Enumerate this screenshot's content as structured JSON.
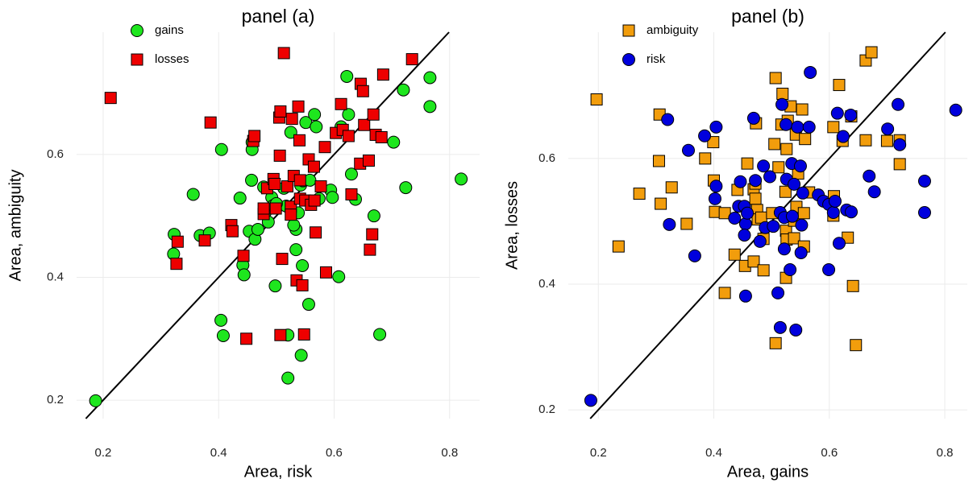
{
  "chart_data": [
    {
      "type": "scatter",
      "title": "panel (a)",
      "x_label": "Area, risk",
      "y_label": "Area, ambiguity",
      "xlim": [
        0.154,
        0.852
      ],
      "ylim": [
        0.17,
        0.799
      ],
      "xticks": [
        0.2,
        0.4,
        0.6,
        0.8
      ],
      "yticks": [
        0.2,
        0.4,
        0.6
      ],
      "grid": true,
      "identity_line": true,
      "legend": "upper left",
      "series": [
        {
          "name": "gains",
          "color": "#1ee61e",
          "marker": "circle",
          "points": [
            [
              0.187,
              0.199
            ],
            [
              0.323,
              0.47
            ],
            [
              0.322,
              0.438
            ],
            [
              0.356,
              0.535
            ],
            [
              0.368,
              0.468
            ],
            [
              0.384,
              0.472
            ],
            [
              0.405,
              0.608
            ],
            [
              0.404,
              0.33
            ],
            [
              0.408,
              0.305
            ],
            [
              0.437,
              0.529
            ],
            [
              0.442,
              0.42
            ],
            [
              0.444,
              0.404
            ],
            [
              0.453,
              0.475
            ],
            [
              0.457,
              0.558
            ],
            [
              0.458,
              0.62
            ],
            [
              0.458,
              0.608
            ],
            [
              0.463,
              0.462
            ],
            [
              0.468,
              0.478
            ],
            [
              0.478,
              0.547
            ],
            [
              0.481,
              0.506
            ],
            [
              0.486,
              0.49
            ],
            [
              0.492,
              0.53
            ],
            [
              0.495,
              0.517
            ],
            [
              0.498,
              0.386
            ],
            [
              0.513,
              0.545
            ],
            [
              0.517,
              0.516
            ],
            [
              0.52,
              0.306
            ],
            [
              0.52,
              0.236
            ],
            [
              0.525,
              0.636
            ],
            [
              0.534,
              0.445
            ],
            [
              0.534,
              0.478
            ],
            [
              0.538,
              0.505
            ],
            [
              0.542,
              0.55
            ],
            [
              0.545,
              0.419
            ],
            [
              0.543,
              0.273
            ],
            [
              0.546,
              0.557
            ],
            [
              0.551,
              0.652
            ],
            [
              0.556,
              0.356
            ],
            [
              0.558,
              0.558
            ],
            [
              0.566,
              0.665
            ],
            [
              0.569,
              0.645
            ],
            [
              0.574,
              0.528
            ],
            [
              0.594,
              0.542
            ],
            [
              0.597,
              0.53
            ],
            [
              0.608,
              0.401
            ],
            [
              0.612,
              0.645
            ],
            [
              0.622,
              0.727
            ],
            [
              0.625,
              0.665
            ],
            [
              0.63,
              0.568
            ],
            [
              0.637,
              0.527
            ],
            [
              0.669,
              0.5
            ],
            [
              0.679,
              0.307
            ],
            [
              0.703,
              0.62
            ],
            [
              0.724,
              0.546
            ],
            [
              0.72,
              0.705
            ],
            [
              0.766,
              0.725
            ],
            [
              0.766,
              0.678
            ],
            [
              0.82,
              0.56
            ],
            [
              0.53,
              0.485
            ],
            [
              0.5,
              0.52
            ]
          ]
        },
        {
          "name": "losses",
          "color": "#ee0000",
          "marker": "square",
          "points": [
            [
              0.213,
              0.692
            ],
            [
              0.327,
              0.422
            ],
            [
              0.329,
              0.458
            ],
            [
              0.376,
              0.46
            ],
            [
              0.386,
              0.652
            ],
            [
              0.422,
              0.485
            ],
            [
              0.424,
              0.475
            ],
            [
              0.443,
              0.435
            ],
            [
              0.448,
              0.3
            ],
            [
              0.46,
              0.622
            ],
            [
              0.462,
              0.63
            ],
            [
              0.478,
              0.503
            ],
            [
              0.478,
              0.512
            ],
            [
              0.484,
              0.545
            ],
            [
              0.495,
              0.56
            ],
            [
              0.497,
              0.552
            ],
            [
              0.499,
              0.512
            ],
            [
              0.505,
              0.66
            ],
            [
              0.507,
              0.67
            ],
            [
              0.506,
              0.598
            ],
            [
              0.507,
              0.306
            ],
            [
              0.51,
              0.43
            ],
            [
              0.513,
              0.765
            ],
            [
              0.519,
              0.548
            ],
            [
              0.525,
              0.515
            ],
            [
              0.525,
              0.502
            ],
            [
              0.527,
              0.658
            ],
            [
              0.53,
              0.565
            ],
            [
              0.535,
              0.395
            ],
            [
              0.538,
              0.678
            ],
            [
              0.54,
              0.623
            ],
            [
              0.541,
              0.558
            ],
            [
              0.541,
              0.528
            ],
            [
              0.545,
              0.387
            ],
            [
              0.548,
              0.307
            ],
            [
              0.55,
              0.525
            ],
            [
              0.556,
              0.592
            ],
            [
              0.56,
              0.518
            ],
            [
              0.565,
              0.58
            ],
            [
              0.566,
              0.525
            ],
            [
              0.568,
              0.473
            ],
            [
              0.577,
              0.548
            ],
            [
              0.584,
              0.612
            ],
            [
              0.586,
              0.408
            ],
            [
              0.603,
              0.635
            ],
            [
              0.612,
              0.682
            ],
            [
              0.615,
              0.64
            ],
            [
              0.625,
              0.63
            ],
            [
              0.63,
              0.535
            ],
            [
              0.645,
              0.585
            ],
            [
              0.646,
              0.715
            ],
            [
              0.65,
              0.703
            ],
            [
              0.652,
              0.648
            ],
            [
              0.66,
              0.59
            ],
            [
              0.662,
              0.445
            ],
            [
              0.666,
              0.47
            ],
            [
              0.668,
              0.665
            ],
            [
              0.672,
              0.632
            ],
            [
              0.682,
              0.628
            ],
            [
              0.685,
              0.73
            ],
            [
              0.735,
              0.755
            ]
          ]
        }
      ]
    },
    {
      "type": "scatter",
      "title": "panel (b)",
      "x_label": "Area, gains",
      "y_label": "Area, losses",
      "xlim": [
        0.148,
        0.839
      ],
      "ylim": [
        0.186,
        0.801
      ],
      "xticks": [
        0.2,
        0.4,
        0.6,
        0.8
      ],
      "yticks": [
        0.2,
        0.4,
        0.6
      ],
      "grid": true,
      "identity_line": true,
      "legend": "upper left",
      "series": [
        {
          "name": "ambiguity",
          "color": "#f29d0c",
          "marker": "square",
          "points": [
            [
              0.197,
              0.694
            ],
            [
              0.235,
              0.46
            ],
            [
              0.271,
              0.544
            ],
            [
              0.305,
              0.596
            ],
            [
              0.306,
              0.67
            ],
            [
              0.308,
              0.528
            ],
            [
              0.327,
              0.554
            ],
            [
              0.353,
              0.496
            ],
            [
              0.385,
              0.6
            ],
            [
              0.399,
              0.626
            ],
            [
              0.4,
              0.565
            ],
            [
              0.402,
              0.515
            ],
            [
              0.419,
              0.513
            ],
            [
              0.419,
              0.386
            ],
            [
              0.436,
              0.447
            ],
            [
              0.441,
              0.55
            ],
            [
              0.454,
              0.429
            ],
            [
              0.458,
              0.592
            ],
            [
              0.469,
              0.551
            ],
            [
              0.469,
              0.436
            ],
            [
              0.472,
              0.56
            ],
            [
              0.472,
              0.536
            ],
            [
              0.473,
              0.656
            ],
            [
              0.475,
              0.518
            ],
            [
              0.476,
              0.503
            ],
            [
              0.482,
              0.506
            ],
            [
              0.486,
              0.472
            ],
            [
              0.486,
              0.422
            ],
            [
              0.501,
              0.513
            ],
            [
              0.505,
              0.623
            ],
            [
              0.507,
              0.728
            ],
            [
              0.507,
              0.306
            ],
            [
              0.512,
              0.586
            ],
            [
              0.517,
              0.654
            ],
            [
              0.519,
              0.703
            ],
            [
              0.524,
              0.547
            ],
            [
              0.525,
              0.41
            ],
            [
              0.525,
              0.485
            ],
            [
              0.526,
              0.471
            ],
            [
              0.526,
              0.615
            ],
            [
              0.528,
              0.66
            ],
            [
              0.533,
              0.683
            ],
            [
              0.539,
              0.501
            ],
            [
              0.539,
              0.473
            ],
            [
              0.542,
              0.638
            ],
            [
              0.543,
              0.523
            ],
            [
              0.546,
              0.576
            ],
            [
              0.553,
              0.678
            ],
            [
              0.556,
              0.46
            ],
            [
              0.556,
              0.513
            ],
            [
              0.558,
              0.631
            ],
            [
              0.565,
              0.546
            ],
            [
              0.607,
              0.65
            ],
            [
              0.607,
              0.509
            ],
            [
              0.608,
              0.54
            ],
            [
              0.617,
              0.717
            ],
            [
              0.623,
              0.628
            ],
            [
              0.632,
              0.474
            ],
            [
              0.638,
              0.667
            ],
            [
              0.641,
              0.397
            ],
            [
              0.646,
              0.303
            ],
            [
              0.663,
              0.629
            ],
            [
              0.663,
              0.756
            ],
            [
              0.673,
              0.769
            ],
            [
              0.7,
              0.628
            ],
            [
              0.722,
              0.629
            ],
            [
              0.722,
              0.591
            ]
          ]
        },
        {
          "name": "risk",
          "color": "#0000dd",
          "marker": "circle",
          "points": [
            [
              0.187,
              0.215
            ],
            [
              0.323,
              0.495
            ],
            [
              0.32,
              0.662
            ],
            [
              0.356,
              0.613
            ],
            [
              0.367,
              0.445
            ],
            [
              0.384,
              0.636
            ],
            [
              0.404,
              0.65
            ],
            [
              0.404,
              0.556
            ],
            [
              0.402,
              0.536
            ],
            [
              0.436,
              0.505
            ],
            [
              0.443,
              0.524
            ],
            [
              0.446,
              0.563
            ],
            [
              0.453,
              0.524
            ],
            [
              0.455,
              0.496
            ],
            [
              0.453,
              0.478
            ],
            [
              0.455,
              0.381
            ],
            [
              0.458,
              0.513
            ],
            [
              0.469,
              0.664
            ],
            [
              0.472,
              0.565
            ],
            [
              0.48,
              0.468
            ],
            [
              0.486,
              0.588
            ],
            [
              0.489,
              0.49
            ],
            [
              0.497,
              0.571
            ],
            [
              0.503,
              0.492
            ],
            [
              0.511,
              0.386
            ],
            [
              0.515,
              0.514
            ],
            [
              0.515,
              0.331
            ],
            [
              0.518,
              0.686
            ],
            [
              0.522,
              0.506
            ],
            [
              0.522,
              0.456
            ],
            [
              0.525,
              0.654
            ],
            [
              0.526,
              0.567
            ],
            [
              0.532,
              0.423
            ],
            [
              0.535,
              0.592
            ],
            [
              0.536,
              0.508
            ],
            [
              0.539,
              0.559
            ],
            [
              0.542,
              0.327
            ],
            [
              0.545,
              0.65
            ],
            [
              0.55,
              0.588
            ],
            [
              0.551,
              0.45
            ],
            [
              0.552,
              0.494
            ],
            [
              0.554,
              0.545
            ],
            [
              0.565,
              0.65
            ],
            [
              0.567,
              0.737
            ],
            [
              0.581,
              0.542
            ],
            [
              0.59,
              0.532
            ],
            [
              0.599,
              0.527
            ],
            [
              0.599,
              0.423
            ],
            [
              0.607,
              0.514
            ],
            [
              0.61,
              0.532
            ],
            [
              0.614,
              0.672
            ],
            [
              0.617,
              0.465
            ],
            [
              0.624,
              0.635
            ],
            [
              0.63,
              0.518
            ],
            [
              0.637,
              0.669
            ],
            [
              0.638,
              0.515
            ],
            [
              0.669,
              0.572
            ],
            [
              0.678,
              0.547
            ],
            [
              0.701,
              0.647
            ],
            [
              0.719,
              0.686
            ],
            [
              0.722,
              0.622
            ],
            [
              0.765,
              0.514
            ],
            [
              0.765,
              0.564
            ],
            [
              0.819,
              0.677
            ]
          ]
        }
      ]
    }
  ]
}
